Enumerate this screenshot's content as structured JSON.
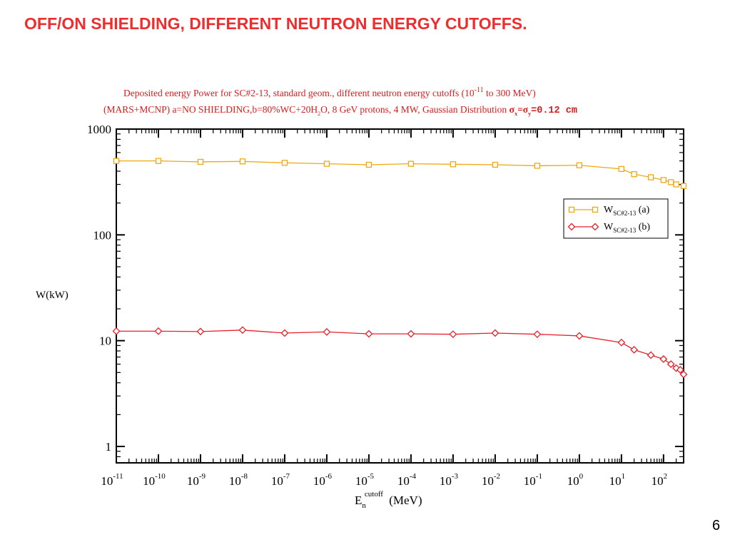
{
  "slide": {
    "title": "OFF/ON SHIELDING, DIFFERENT NEUTRON ENERGY CUTOFFS.",
    "page_number": "6"
  },
  "chart_data": {
    "type": "line",
    "title_line1_parts": [
      "Deposited energy Power for  SC#2-13, standard geom., different neutron energy cutoffs (10",
      "-11",
      " to 300 MeV)"
    ],
    "title_line2_parts": [
      "(MARS+MCNP)  a=NO SHIELDING,b=80%WC+20H",
      "2",
      "O,  8 GeV protons, 4 MW, Gaussian Distribution  ",
      "σ",
      "x",
      "=σ",
      "y",
      "=0.12 cm"
    ],
    "ylabel": "W(kW)",
    "xlabel_parts": [
      "E",
      "n",
      "cutoff",
      " (MeV)"
    ],
    "x_scale": "log",
    "y_scale": "log",
    "xlim": [
      1e-11,
      300
    ],
    "ylim": [
      0.7,
      1000
    ],
    "x_ticks": [
      {
        "base": "10",
        "exp": "-11",
        "value": 1e-11
      },
      {
        "base": "10",
        "exp": "-10",
        "value": 1e-10
      },
      {
        "base": "10",
        "exp": "-9",
        "value": 1e-09
      },
      {
        "base": "10",
        "exp": "-8",
        "value": 1e-08
      },
      {
        "base": "10",
        "exp": "-7",
        "value": 1e-07
      },
      {
        "base": "10",
        "exp": "-6",
        "value": 1e-06
      },
      {
        "base": "10",
        "exp": "-5",
        "value": 1e-05
      },
      {
        "base": "10",
        "exp": "-4",
        "value": 0.0001
      },
      {
        "base": "10",
        "exp": "-3",
        "value": 0.001
      },
      {
        "base": "10",
        "exp": "-2",
        "value": 0.01
      },
      {
        "base": "10",
        "exp": "-1",
        "value": 0.1
      },
      {
        "base": "10",
        "exp": "0",
        "value": 1
      },
      {
        "base": "10",
        "exp": "1",
        "value": 10
      },
      {
        "base": "10",
        "exp": "2",
        "value": 100
      }
    ],
    "y_ticks": [
      {
        "label": "1000",
        "value": 1000
      },
      {
        "label": "100",
        "value": 100
      },
      {
        "label": "10",
        "value": 10
      },
      {
        "label": "1",
        "value": 1
      }
    ],
    "legend_placement": "right",
    "series": [
      {
        "name_parts": [
          "W",
          "SC#2-13",
          " (a)"
        ],
        "color": "#f0a810",
        "marker": "square",
        "x": [
          1e-11,
          1e-10,
          1e-09,
          1e-08,
          1e-07,
          1e-06,
          1e-05,
          0.0001,
          0.001,
          0.01,
          0.1,
          1,
          10,
          20,
          50,
          100,
          150,
          200,
          300
        ],
        "y": [
          500,
          500,
          490,
          495,
          480,
          470,
          460,
          470,
          465,
          460,
          450,
          455,
          420,
          375,
          350,
          330,
          315,
          300,
          290
        ]
      },
      {
        "name_parts": [
          "W",
          "SC#2-13",
          " (b)"
        ],
        "color": "#e8202a",
        "marker": "diamond",
        "x": [
          1e-11,
          1e-10,
          1e-09,
          1e-08,
          1e-07,
          1e-06,
          1e-05,
          0.0001,
          0.001,
          0.01,
          0.1,
          1,
          10,
          20,
          50,
          100,
          150,
          200,
          250,
          300
        ],
        "y": [
          12.3,
          12.3,
          12.2,
          12.6,
          11.8,
          12.1,
          11.6,
          11.6,
          11.5,
          11.8,
          11.5,
          11.1,
          9.6,
          8.2,
          7.3,
          6.7,
          6.0,
          5.5,
          5.3,
          4.8
        ]
      }
    ]
  }
}
